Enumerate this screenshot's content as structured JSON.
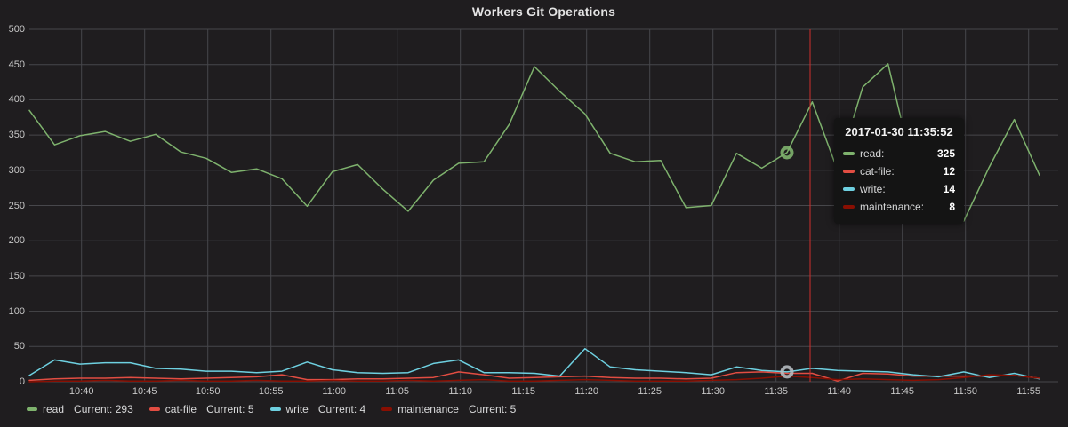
{
  "panel": {
    "title": "Workers Git Operations"
  },
  "tooltip": {
    "timestamp": "2017-01-30 11:35:52",
    "rows": [
      {
        "label": "read:",
        "value": "325",
        "color": "#7eb26d"
      },
      {
        "label": "cat-file:",
        "value": "12",
        "color": "#e24d42"
      },
      {
        "label": "write:",
        "value": "14",
        "color": "#6ed0e0"
      },
      {
        "label": "maintenance:",
        "value": "8",
        "color": "#890f02"
      }
    ]
  },
  "legend": {
    "items": [
      {
        "name": "read",
        "current_label": "Current:",
        "current": "293",
        "color": "#7eb26d"
      },
      {
        "name": "cat-file",
        "current_label": "Current:",
        "current": "5",
        "color": "#e24d42"
      },
      {
        "name": "write",
        "current_label": "Current:",
        "current": "4",
        "color": "#6ed0e0"
      },
      {
        "name": "maintenance",
        "current_label": "Current:",
        "current": "5",
        "color": "#890f02"
      }
    ]
  },
  "chart_data": {
    "type": "line",
    "title": "Workers Git Operations",
    "xlabel": "",
    "ylabel": "",
    "ylim": [
      0,
      500
    ],
    "grid": true,
    "legend_position": "bottom",
    "x_start_time": "10:35:52",
    "x_interval_minutes": 2,
    "x_tick_labels": [
      "10:40",
      "10:45",
      "10:50",
      "10:55",
      "11:00",
      "11:05",
      "11:10",
      "11:15",
      "11:20",
      "11:25",
      "11:30",
      "11:35",
      "11:40",
      "11:45",
      "11:50",
      "11:55"
    ],
    "y_ticks": [
      0,
      50,
      100,
      150,
      200,
      250,
      300,
      350,
      400,
      450,
      500
    ],
    "series": [
      {
        "name": "read",
        "color": "#7eb26d",
        "values": [
          385,
          336,
          349,
          355,
          341,
          351,
          326,
          317,
          297,
          302,
          288,
          249,
          298,
          308,
          273,
          242,
          286,
          310,
          312,
          365,
          447,
          412,
          380,
          324,
          312,
          314,
          247,
          250,
          324,
          303,
          325,
          397,
          300,
          418,
          451,
          300,
          265,
          228,
          304,
          372,
          293
        ]
      },
      {
        "name": "cat-file",
        "color": "#e24d42",
        "values": [
          2,
          4,
          5,
          5,
          6,
          5,
          4,
          5,
          6,
          7,
          10,
          3,
          3,
          4,
          4,
          5,
          6,
          14,
          10,
          5,
          6,
          7,
          8,
          6,
          5,
          5,
          4,
          5,
          13,
          14,
          12,
          12,
          1,
          12,
          11,
          8,
          8,
          8,
          8,
          9,
          5
        ]
      },
      {
        "name": "write",
        "color": "#6ed0e0",
        "values": [
          9,
          31,
          25,
          27,
          27,
          19,
          18,
          15,
          15,
          13,
          15,
          28,
          17,
          13,
          12,
          13,
          26,
          31,
          13,
          13,
          12,
          8,
          47,
          21,
          17,
          15,
          13,
          10,
          21,
          16,
          14,
          19,
          16,
          15,
          14,
          10,
          7,
          14,
          6,
          12,
          4
        ]
      },
      {
        "name": "maintenance",
        "color": "#890f02",
        "values": [
          0,
          1,
          1,
          2,
          1,
          1,
          2,
          1,
          1,
          2,
          1,
          1,
          2,
          1,
          1,
          2,
          1,
          2,
          3,
          1,
          1,
          2,
          3,
          2,
          1,
          1,
          1,
          2,
          3,
          5,
          8,
          6,
          3,
          4,
          3,
          2,
          3,
          6,
          10,
          9,
          5
        ]
      }
    ],
    "hovered_point": {
      "time": "11:35:52",
      "index": 30,
      "read": 325,
      "cat-file": 12,
      "write": 14,
      "maintenance": 8
    },
    "highlights": [
      {
        "series": "read",
        "index": 30,
        "ring_color": "#7eb26d"
      },
      {
        "series": "write",
        "index": 30,
        "ring_color": "#b5bbc0"
      }
    ],
    "crosshair_color": "#cf2f2c",
    "grid_color": "#47474b",
    "background_color": "#1f1d1f"
  }
}
